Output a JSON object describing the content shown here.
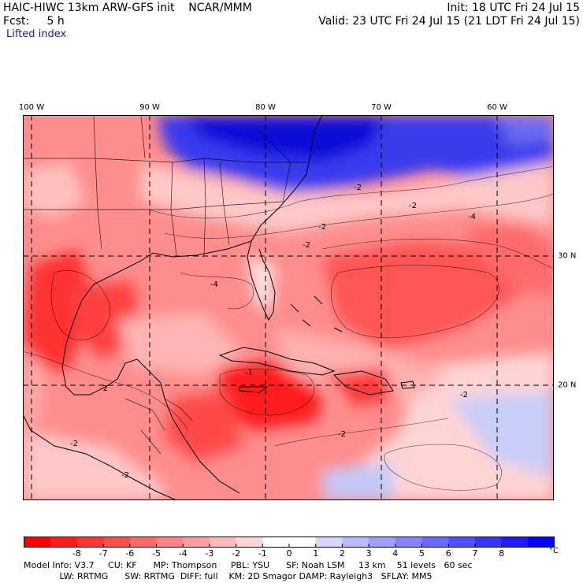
{
  "header": {
    "title": "HAIC-HIWC 13km ARW-GFS init    NCAR/MMM",
    "forecast": "Fcst:     5 h",
    "field": "Lifted index",
    "init": "Init: 18 UTC Fri 24 Jul 15",
    "valid": "Valid: 23 UTC Fri 24 Jul 15 (21 LDT Fri 24 Jul 15)"
  },
  "map": {
    "lon_labels": [
      "100 W",
      "90 W",
      "80 W",
      "70 W",
      "60 W"
    ],
    "lat_labels": [
      "30 N",
      "20 N"
    ],
    "contour_labels": [
      "-2",
      "-2",
      "-2",
      "-2",
      "-4",
      "-4",
      "-2",
      "-2",
      "-1",
      "-2",
      "-2",
      "-2"
    ],
    "colors": {
      "strong_negative": "#ff1a1a",
      "mid_negative": "#ff7b7b",
      "weak_negative": "#ffd0d0",
      "neutral": "#ffffff",
      "positive": "#9fa6ff",
      "strong_positive": "#1010e0"
    }
  },
  "colorbar": {
    "ticks": [
      "-8",
      "-7",
      "-6",
      "-5",
      "-4",
      "-3",
      "-2",
      "-1",
      "0",
      "1",
      "2",
      "3",
      "4",
      "5",
      "6",
      "7",
      "8"
    ],
    "unit": "°C",
    "colors": [
      "#ff0000",
      "#ff1c1c",
      "#ff3636",
      "#ff5050",
      "#ff6a6a",
      "#ff8585",
      "#ff9f9f",
      "#ffbaba",
      "#ffd6d6",
      "#ffffff",
      "#ffffff",
      "#d6d6ff",
      "#babaff",
      "#9f9fff",
      "#8585ff",
      "#6a6aff",
      "#5050ff",
      "#3636ff",
      "#1c1cff",
      "#0000ff"
    ]
  },
  "info": {
    "line1": "Model Info: V3.7     CU: KF      MP: Thompson     PBL: YSU      SF: Noah LSM     13 km    51 levels   60 sec",
    "line2": "             LW: RRTMG      SW: RRTMG  DIFF: full    KM: 2D Smagor DAMP: Rayleigh3   SFLAY: MM5"
  }
}
